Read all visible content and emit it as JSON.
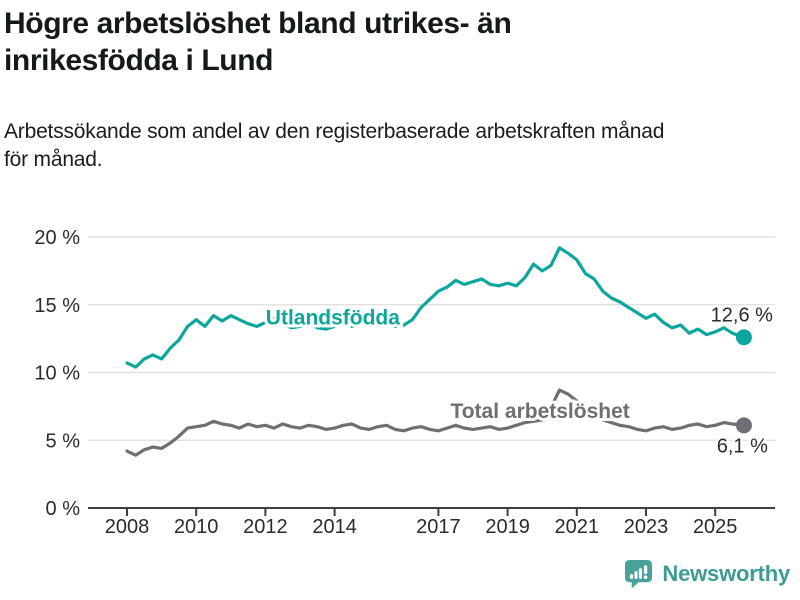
{
  "header": {
    "title_line1": "Högre arbetslöshet bland utrikes- än",
    "title_line2": "inrikesfödda i Lund",
    "subtitle_line1": "Arbetssökande som andel av den registerbaserade arbetskraften månad",
    "subtitle_line2": "för månad."
  },
  "colors": {
    "accent_teal": "#0CA79C",
    "series_gray": "#6E6E74",
    "grid": "#DDDDDD",
    "axis": "#3F3F3F",
    "tick_text": "#2B2B2B",
    "end_label_text": "#2B2B2B",
    "logo_teal": "#4AA09B",
    "brand_text_teal": "#3D9B96"
  },
  "chart_data": {
    "type": "line",
    "title": "Arbetssökande som andel av den registerbaserade arbetskraften månad för månad",
    "xlabel": "",
    "ylabel": "",
    "ylim": [
      0,
      20
    ],
    "yticks": [
      0,
      5,
      10,
      15,
      20
    ],
    "ytick_labels": [
      "0 %",
      "5 %",
      "10 %",
      "15 %",
      "20 %"
    ],
    "xticks": [
      2008,
      2010,
      2012,
      2014,
      2017,
      2019,
      2021,
      2023,
      2025
    ],
    "xtick_labels": [
      "2008",
      "2010",
      "2012",
      "2014",
      "2017",
      "2019",
      "2021",
      "2023",
      "2025"
    ],
    "grid": true,
    "legend_position": "inline-labels",
    "x": [
      2008.0,
      2008.25,
      2008.5,
      2008.75,
      2009.0,
      2009.25,
      2009.5,
      2009.75,
      2010.0,
      2010.25,
      2010.5,
      2010.75,
      2011.0,
      2011.25,
      2011.5,
      2011.75,
      2012.0,
      2012.25,
      2012.5,
      2012.75,
      2013.0,
      2013.25,
      2013.5,
      2013.75,
      2014.0,
      2014.25,
      2014.5,
      2014.75,
      2015.0,
      2015.25,
      2015.5,
      2015.75,
      2016.0,
      2016.25,
      2016.5,
      2016.75,
      2017.0,
      2017.25,
      2017.5,
      2017.75,
      2018.0,
      2018.25,
      2018.5,
      2018.75,
      2019.0,
      2019.25,
      2019.5,
      2019.75,
      2020.0,
      2020.25,
      2020.5,
      2020.75,
      2021.0,
      2021.25,
      2021.5,
      2021.75,
      2022.0,
      2022.25,
      2022.5,
      2022.75,
      2023.0,
      2023.25,
      2023.5,
      2023.75,
      2024.0,
      2024.25,
      2024.5,
      2024.75,
      2025.0,
      2025.25,
      2025.5,
      2025.83
    ],
    "series": [
      {
        "name": "Utlandsfödda",
        "color": "#0CA79C",
        "end_label": "12,6 %",
        "end_value": 12.6,
        "label_at": {
          "x": 2013.95,
          "y": 14.05
        },
        "values": [
          10.7,
          10.4,
          11.0,
          11.3,
          11.0,
          11.8,
          12.4,
          13.4,
          13.9,
          13.4,
          14.2,
          13.8,
          14.2,
          13.9,
          13.6,
          13.4,
          13.7,
          14.0,
          13.6,
          13.3,
          13.4,
          13.7,
          13.3,
          13.2,
          13.4,
          13.7,
          13.4,
          13.6,
          13.8,
          13.5,
          13.7,
          13.4,
          13.5,
          13.9,
          14.8,
          15.4,
          16.0,
          16.3,
          16.8,
          16.5,
          16.7,
          16.9,
          16.5,
          16.4,
          16.6,
          16.4,
          17.0,
          18.0,
          17.5,
          17.9,
          19.2,
          18.8,
          18.3,
          17.3,
          16.9,
          16.0,
          15.5,
          15.2,
          14.8,
          14.4,
          14.0,
          14.3,
          13.7,
          13.3,
          13.5,
          12.9,
          13.2,
          12.8,
          13.0,
          13.3,
          12.9,
          12.6
        ]
      },
      {
        "name": "Total arbetslöshet",
        "color": "#6E6E74",
        "end_label": "6,1 %",
        "end_value": 6.1,
        "label_at": {
          "x": 2019.94,
          "y": 7.16
        },
        "values": [
          4.2,
          3.9,
          4.3,
          4.5,
          4.4,
          4.8,
          5.3,
          5.9,
          6.0,
          6.1,
          6.4,
          6.2,
          6.1,
          5.9,
          6.2,
          6.0,
          6.1,
          5.9,
          6.2,
          6.0,
          5.9,
          6.1,
          6.0,
          5.8,
          5.9,
          6.1,
          6.2,
          5.9,
          5.8,
          6.0,
          6.1,
          5.8,
          5.7,
          5.9,
          6.0,
          5.8,
          5.7,
          5.9,
          6.1,
          5.9,
          5.8,
          5.9,
          6.0,
          5.8,
          5.9,
          6.1,
          6.3,
          6.4,
          6.5,
          7.4,
          8.7,
          8.4,
          7.9,
          7.4,
          7.0,
          6.5,
          6.3,
          6.1,
          6.0,
          5.8,
          5.7,
          5.9,
          6.0,
          5.8,
          5.9,
          6.1,
          6.2,
          6.0,
          6.1,
          6.3,
          6.2,
          6.1
        ]
      }
    ]
  },
  "footer": {
    "brand": "Newsworthy",
    "logo_icon": "bar-chart-speech-bubble-icon"
  }
}
